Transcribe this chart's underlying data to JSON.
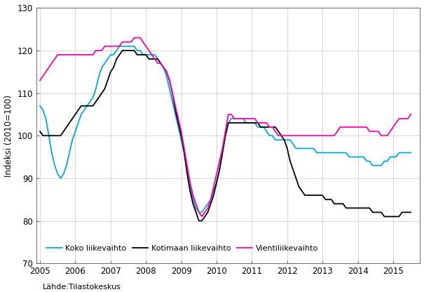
{
  "title": "",
  "ylabel": "Indeksi (2010=100)",
  "source": "Lähde:Tilastokeskus",
  "ylim": [
    70,
    130
  ],
  "yticks": [
    70,
    80,
    90,
    100,
    110,
    120,
    130
  ],
  "xlim_start": 2004.9,
  "xlim_end": 2015.75,
  "line_colors": {
    "koko": "#00AADD",
    "kotimaan": "#000000",
    "vienti": "#FF00AA"
  },
  "legend_labels": [
    "Koko liikevaihto",
    "Kotimaan liikevaihto",
    "Vientiliikevaihto"
  ],
  "koko_x": [
    2005.0,
    2005.083,
    2005.167,
    2005.25,
    2005.333,
    2005.417,
    2005.5,
    2005.583,
    2005.667,
    2005.75,
    2005.833,
    2005.917,
    2006.0,
    2006.083,
    2006.167,
    2006.25,
    2006.333,
    2006.417,
    2006.5,
    2006.583,
    2006.667,
    2006.75,
    2006.833,
    2006.917,
    2007.0,
    2007.083,
    2007.167,
    2007.25,
    2007.333,
    2007.417,
    2007.5,
    2007.583,
    2007.667,
    2007.75,
    2007.833,
    2007.917,
    2008.0,
    2008.083,
    2008.167,
    2008.25,
    2008.333,
    2008.417,
    2008.5,
    2008.583,
    2008.667,
    2008.75,
    2008.833,
    2008.917,
    2009.0,
    2009.083,
    2009.167,
    2009.25,
    2009.333,
    2009.417,
    2009.5,
    2009.583,
    2009.667,
    2009.75,
    2009.833,
    2009.917,
    2010.0,
    2010.083,
    2010.167,
    2010.25,
    2010.333,
    2010.417,
    2010.5,
    2010.583,
    2010.667,
    2010.75,
    2010.833,
    2010.917,
    2011.0,
    2011.083,
    2011.167,
    2011.25,
    2011.333,
    2011.417,
    2011.5,
    2011.583,
    2011.667,
    2011.75,
    2011.833,
    2011.917,
    2012.0,
    2012.083,
    2012.167,
    2012.25,
    2012.333,
    2012.417,
    2012.5,
    2012.583,
    2012.667,
    2012.75,
    2012.833,
    2012.917,
    2013.0,
    2013.083,
    2013.167,
    2013.25,
    2013.333,
    2013.417,
    2013.5,
    2013.583,
    2013.667,
    2013.75,
    2013.833,
    2013.917,
    2014.0,
    2014.083,
    2014.167,
    2014.25,
    2014.333,
    2014.417,
    2014.5,
    2014.583,
    2014.667,
    2014.75,
    2014.833,
    2014.917,
    2015.0,
    2015.083,
    2015.167,
    2015.25,
    2015.333,
    2015.417,
    2015.5
  ],
  "koko_y": [
    107,
    106,
    104,
    100,
    96,
    93,
    91,
    90,
    91,
    93,
    96,
    99,
    101,
    103,
    105,
    106,
    107,
    108,
    109,
    111,
    114,
    116,
    117,
    118,
    119,
    119,
    120,
    121,
    121,
    121,
    121,
    121,
    121,
    120,
    120,
    119,
    119,
    119,
    119,
    119,
    118,
    117,
    116,
    114,
    111,
    108,
    105,
    102,
    99,
    96,
    92,
    88,
    85,
    83,
    82,
    82,
    83,
    84,
    85,
    87,
    89,
    92,
    96,
    100,
    103,
    104,
    104,
    104,
    104,
    104,
    103,
    103,
    103,
    103,
    102,
    102,
    102,
    101,
    100,
    100,
    99,
    99,
    99,
    99,
    99,
    99,
    98,
    97,
    97,
    97,
    97,
    97,
    97,
    97,
    96,
    96,
    96,
    96,
    96,
    96,
    96,
    96,
    96,
    96,
    96,
    95,
    95,
    95,
    95,
    95,
    95,
    94,
    94,
    93,
    93,
    93,
    93,
    94,
    94,
    95,
    95,
    95,
    96,
    96,
    96,
    96,
    96
  ],
  "kotimaan_x": [
    2005.0,
    2005.083,
    2005.167,
    2005.25,
    2005.333,
    2005.417,
    2005.5,
    2005.583,
    2005.667,
    2005.75,
    2005.833,
    2005.917,
    2006.0,
    2006.083,
    2006.167,
    2006.25,
    2006.333,
    2006.417,
    2006.5,
    2006.583,
    2006.667,
    2006.75,
    2006.833,
    2006.917,
    2007.0,
    2007.083,
    2007.167,
    2007.25,
    2007.333,
    2007.417,
    2007.5,
    2007.583,
    2007.667,
    2007.75,
    2007.833,
    2007.917,
    2008.0,
    2008.083,
    2008.167,
    2008.25,
    2008.333,
    2008.417,
    2008.5,
    2008.583,
    2008.667,
    2008.75,
    2008.833,
    2008.917,
    2009.0,
    2009.083,
    2009.167,
    2009.25,
    2009.333,
    2009.417,
    2009.5,
    2009.583,
    2009.667,
    2009.75,
    2009.833,
    2009.917,
    2010.0,
    2010.083,
    2010.167,
    2010.25,
    2010.333,
    2010.417,
    2010.5,
    2010.583,
    2010.667,
    2010.75,
    2010.833,
    2010.917,
    2011.0,
    2011.083,
    2011.167,
    2011.25,
    2011.333,
    2011.417,
    2011.5,
    2011.583,
    2011.667,
    2011.75,
    2011.833,
    2011.917,
    2012.0,
    2012.083,
    2012.167,
    2012.25,
    2012.333,
    2012.417,
    2012.5,
    2012.583,
    2012.667,
    2012.75,
    2012.833,
    2012.917,
    2013.0,
    2013.083,
    2013.167,
    2013.25,
    2013.333,
    2013.417,
    2013.5,
    2013.583,
    2013.667,
    2013.75,
    2013.833,
    2013.917,
    2014.0,
    2014.083,
    2014.167,
    2014.25,
    2014.333,
    2014.417,
    2014.5,
    2014.583,
    2014.667,
    2014.75,
    2014.833,
    2014.917,
    2015.0,
    2015.083,
    2015.167,
    2015.25,
    2015.333,
    2015.417,
    2015.5
  ],
  "kotimaan_y": [
    101,
    100,
    100,
    100,
    100,
    100,
    100,
    100,
    101,
    102,
    103,
    104,
    105,
    106,
    107,
    107,
    107,
    107,
    107,
    108,
    109,
    110,
    111,
    113,
    115,
    116,
    118,
    119,
    120,
    120,
    120,
    120,
    120,
    119,
    119,
    119,
    119,
    118,
    118,
    118,
    118,
    117,
    116,
    115,
    113,
    110,
    106,
    103,
    100,
    96,
    91,
    87,
    84,
    82,
    80,
    80,
    81,
    82,
    84,
    86,
    89,
    92,
    96,
    100,
    103,
    103,
    103,
    103,
    103,
    103,
    103,
    103,
    103,
    103,
    103,
    102,
    102,
    102,
    102,
    102,
    102,
    101,
    100,
    99,
    97,
    94,
    92,
    90,
    88,
    87,
    86,
    86,
    86,
    86,
    86,
    86,
    86,
    85,
    85,
    85,
    84,
    84,
    84,
    84,
    83,
    83,
    83,
    83,
    83,
    83,
    83,
    83,
    83,
    82,
    82,
    82,
    82,
    81,
    81,
    81,
    81,
    81,
    81,
    82,
    82,
    82,
    82
  ],
  "vienti_x": [
    2005.0,
    2005.083,
    2005.167,
    2005.25,
    2005.333,
    2005.417,
    2005.5,
    2005.583,
    2005.667,
    2005.75,
    2005.833,
    2005.917,
    2006.0,
    2006.083,
    2006.167,
    2006.25,
    2006.333,
    2006.417,
    2006.5,
    2006.583,
    2006.667,
    2006.75,
    2006.833,
    2006.917,
    2007.0,
    2007.083,
    2007.167,
    2007.25,
    2007.333,
    2007.417,
    2007.5,
    2007.583,
    2007.667,
    2007.75,
    2007.833,
    2007.917,
    2008.0,
    2008.083,
    2008.167,
    2008.25,
    2008.333,
    2008.417,
    2008.5,
    2008.583,
    2008.667,
    2008.75,
    2008.833,
    2008.917,
    2009.0,
    2009.083,
    2009.167,
    2009.25,
    2009.333,
    2009.417,
    2009.5,
    2009.583,
    2009.667,
    2009.75,
    2009.833,
    2009.917,
    2010.0,
    2010.083,
    2010.167,
    2010.25,
    2010.333,
    2010.417,
    2010.5,
    2010.583,
    2010.667,
    2010.75,
    2010.833,
    2010.917,
    2011.0,
    2011.083,
    2011.167,
    2011.25,
    2011.333,
    2011.417,
    2011.5,
    2011.583,
    2011.667,
    2011.75,
    2011.833,
    2011.917,
    2012.0,
    2012.083,
    2012.167,
    2012.25,
    2012.333,
    2012.417,
    2012.5,
    2012.583,
    2012.667,
    2012.75,
    2012.833,
    2012.917,
    2013.0,
    2013.083,
    2013.167,
    2013.25,
    2013.333,
    2013.417,
    2013.5,
    2013.583,
    2013.667,
    2013.75,
    2013.833,
    2013.917,
    2014.0,
    2014.083,
    2014.167,
    2014.25,
    2014.333,
    2014.417,
    2014.5,
    2014.583,
    2014.667,
    2014.75,
    2014.833,
    2014.917,
    2015.0,
    2015.083,
    2015.167,
    2015.25,
    2015.333,
    2015.417,
    2015.5
  ],
  "vienti_y": [
    113,
    114,
    115,
    116,
    117,
    118,
    119,
    119,
    119,
    119,
    119,
    119,
    119,
    119,
    119,
    119,
    119,
    119,
    119,
    120,
    120,
    120,
    121,
    121,
    121,
    121,
    121,
    121,
    122,
    122,
    122,
    122,
    123,
    123,
    123,
    122,
    121,
    120,
    119,
    118,
    117,
    117,
    116,
    115,
    113,
    110,
    107,
    104,
    101,
    97,
    93,
    89,
    86,
    84,
    82,
    81,
    82,
    83,
    85,
    88,
    91,
    94,
    97,
    101,
    105,
    105,
    104,
    104,
    104,
    104,
    104,
    104,
    104,
    104,
    103,
    103,
    103,
    103,
    102,
    102,
    101,
    100,
    100,
    100,
    100,
    100,
    100,
    100,
    100,
    100,
    100,
    100,
    100,
    100,
    100,
    100,
    100,
    100,
    100,
    100,
    100,
    101,
    102,
    102,
    102,
    102,
    102,
    102,
    102,
    102,
    102,
    102,
    101,
    101,
    101,
    101,
    100,
    100,
    100,
    101,
    102,
    103,
    104,
    104,
    104,
    104,
    105
  ]
}
